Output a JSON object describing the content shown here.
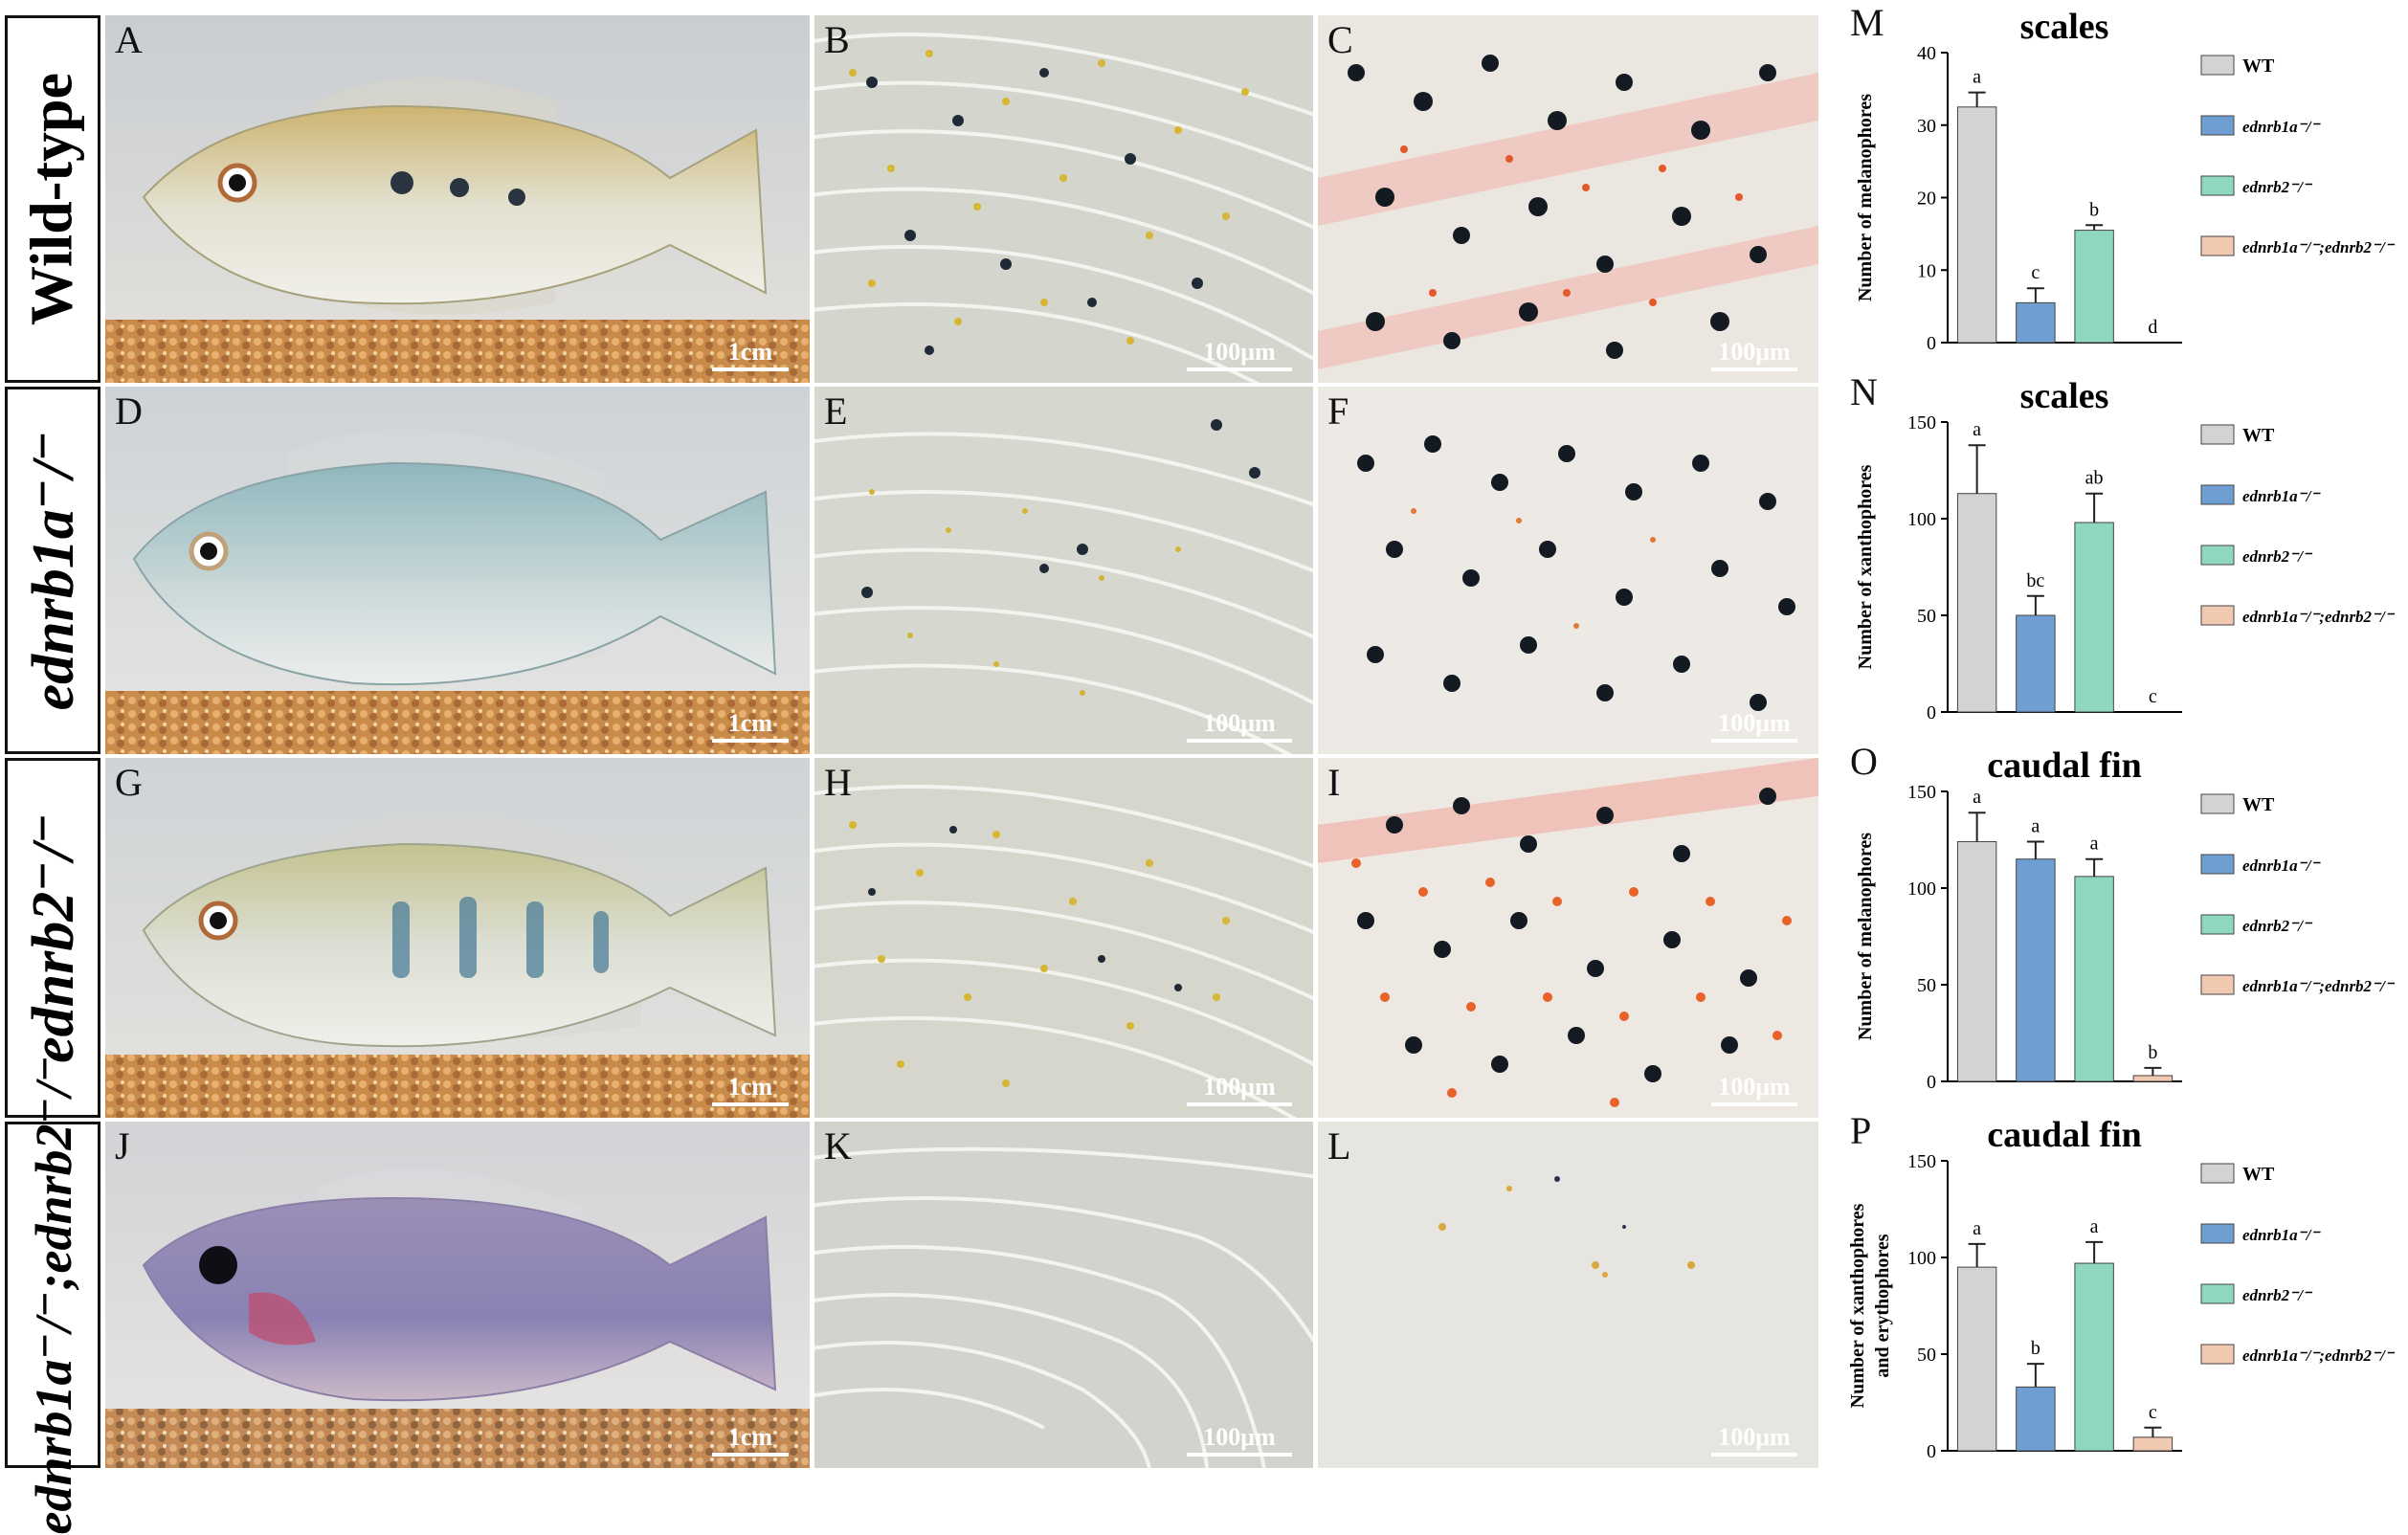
{
  "row_labels": [
    "Wild-type",
    "ednrb1a⁻/⁻",
    "ednrb2⁻/⁻",
    "ednrb1a⁻/⁻;ednrb2⁻/⁻"
  ],
  "panel_letters": [
    "A",
    "B",
    "C",
    "D",
    "E",
    "F",
    "G",
    "H",
    "I",
    "J",
    "K",
    "L"
  ],
  "scale_bars": {
    "fish": "1cm",
    "micro": "100μm"
  },
  "colors": {
    "WT": "#d3d3d3",
    "ednrb1a": "#6f9fd2",
    "ednrb2": "#8fd8bd",
    "double": "#f1c8b0"
  },
  "legend": [
    "WT",
    "ednrb1a⁻/⁻",
    "ednrb2⁻/⁻",
    "ednrb1a⁻/⁻;ednrb2⁻/⁻"
  ],
  "chart_data": [
    {
      "type": "bar",
      "letter": "M",
      "title": "scales",
      "ylabel": "Number of melanophores",
      "categories": [
        "WT",
        "ednrb1a-/-",
        "ednrb2-/-",
        "ednrb1a-/-;ednrb2-/-"
      ],
      "values": [
        32.5,
        5.5,
        15.5,
        0
      ],
      "errors": [
        2,
        2,
        0.7,
        0
      ],
      "sig": [
        "a",
        "c",
        "b",
        "d"
      ],
      "ylim": [
        0,
        40
      ],
      "yticks": [
        0,
        10,
        20,
        30,
        40
      ]
    },
    {
      "type": "bar",
      "letter": "N",
      "title": "scales",
      "ylabel": "Number of xanthophores",
      "categories": [
        "WT",
        "ednrb1a-/-",
        "ednrb2-/-",
        "ednrb1a-/-;ednrb2-/-"
      ],
      "values": [
        113,
        50,
        98,
        0
      ],
      "errors": [
        25,
        10,
        15,
        0
      ],
      "sig": [
        "a",
        "bc",
        "ab",
        "c"
      ],
      "ylim": [
        0,
        150
      ],
      "yticks": [
        0,
        50,
        100,
        150
      ]
    },
    {
      "type": "bar",
      "letter": "O",
      "title": "caudal fin",
      "ylabel": "Number of melanophores",
      "categories": [
        "WT",
        "ednrb1a-/-",
        "ednrb2-/-",
        "ednrb1a-/-;ednrb2-/-"
      ],
      "values": [
        124,
        115,
        106,
        3
      ],
      "errors": [
        15,
        9,
        9,
        4
      ],
      "sig": [
        "a",
        "a",
        "a",
        "b"
      ],
      "ylim": [
        0,
        150
      ],
      "yticks": [
        0,
        50,
        100,
        150
      ]
    },
    {
      "type": "bar",
      "letter": "P",
      "title": "caudal fin",
      "ylabel": "Number of xanthophores and erythophores",
      "ylabel_lines": [
        "Number of xanthophores",
        "and erythophores"
      ],
      "categories": [
        "WT",
        "ednrb1a-/-",
        "ednrb2-/-",
        "ednrb1a-/-;ednrb2-/-"
      ],
      "values": [
        95,
        33,
        97,
        7
      ],
      "errors": [
        12,
        12,
        11,
        5
      ],
      "sig": [
        "a",
        "b",
        "a",
        "c"
      ],
      "ylim": [
        0,
        150
      ],
      "yticks": [
        0,
        50,
        100,
        150
      ]
    }
  ]
}
